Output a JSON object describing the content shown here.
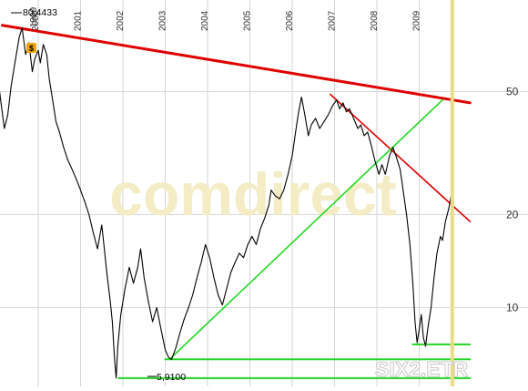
{
  "chart_data": {
    "type": "line",
    "scale": "log",
    "grid": true,
    "watermark": "comdirect",
    "symbol_label": "SIX2.ETR",
    "x_ticks": [
      "2000",
      "2001",
      "2002",
      "2003",
      "2004",
      "2005",
      "2006",
      "2007",
      "2008",
      "2009"
    ],
    "y_ticks": [
      {
        "value": 50,
        "label": "50"
      },
      {
        "value": 20,
        "label": "20"
      },
      {
        "value": 10,
        "label": "10"
      }
    ],
    "annotations": {
      "high_label": "80,4433",
      "high_value": 80.4433,
      "low_label": "5,9100",
      "low_value": 5.91,
      "dividend_marker": "$",
      "cut_off_year_label": "1999"
    },
    "colors": {
      "price": "#000000",
      "resistance": "#e00000",
      "support": "#22d622",
      "grid": "#d6d6d6",
      "current_marker": "#eadb86",
      "watermark": "#f3ecc5",
      "axis_text": "#333333"
    },
    "series": [
      {
        "points": [
          [
            1999.05,
            55
          ],
          [
            1999.12,
            46
          ],
          [
            1999.2,
            38
          ],
          [
            1999.28,
            42
          ],
          [
            1999.36,
            52
          ],
          [
            1999.45,
            62
          ],
          [
            1999.55,
            75
          ],
          [
            1999.62,
            80.4
          ],
          [
            1999.7,
            66
          ],
          [
            1999.78,
            72
          ],
          [
            1999.86,
            58
          ],
          [
            1999.92,
            64
          ],
          [
            2000.0,
            68
          ],
          [
            2000.05,
            62
          ],
          [
            2000.12,
            71
          ],
          [
            2000.2,
            66
          ],
          [
            2000.26,
            55
          ],
          [
            2000.33,
            48
          ],
          [
            2000.42,
            40
          ],
          [
            2000.5,
            37
          ],
          [
            2000.6,
            33
          ],
          [
            2000.7,
            30
          ],
          [
            2000.8,
            28
          ],
          [
            2000.9,
            26
          ],
          [
            2001.0,
            24
          ],
          [
            2001.1,
            22
          ],
          [
            2001.2,
            20
          ],
          [
            2001.3,
            17.5
          ],
          [
            2001.4,
            15.5
          ],
          [
            2001.5,
            18.5
          ],
          [
            2001.55,
            16
          ],
          [
            2001.62,
            13
          ],
          [
            2001.7,
            10.5
          ],
          [
            2001.75,
            9
          ],
          [
            2001.8,
            6.9
          ],
          [
            2001.84,
            5.91
          ],
          [
            2001.88,
            7.5
          ],
          [
            2001.95,
            9.5
          ],
          [
            2002.05,
            11.5
          ],
          [
            2002.15,
            13.5
          ],
          [
            2002.25,
            12
          ],
          [
            2002.35,
            13.5
          ],
          [
            2002.42,
            15.5
          ],
          [
            2002.5,
            12.5
          ],
          [
            2002.6,
            10.5
          ],
          [
            2002.7,
            9
          ],
          [
            2002.8,
            10
          ],
          [
            2002.9,
            8.5
          ],
          [
            2003.0,
            7.3
          ],
          [
            2003.08,
            6.9
          ],
          [
            2003.15,
            6.8
          ],
          [
            2003.25,
            7.4
          ],
          [
            2003.35,
            8.3
          ],
          [
            2003.45,
            9.2
          ],
          [
            2003.55,
            10
          ],
          [
            2003.65,
            11
          ],
          [
            2003.75,
            12.5
          ],
          [
            2003.85,
            14
          ],
          [
            2003.95,
            16
          ],
          [
            2004.05,
            14.5
          ],
          [
            2004.15,
            12.5
          ],
          [
            2004.25,
            11
          ],
          [
            2004.35,
            10.2
          ],
          [
            2004.45,
            11.5
          ],
          [
            2004.55,
            13
          ],
          [
            2004.65,
            14
          ],
          [
            2004.75,
            15
          ],
          [
            2004.85,
            14.5
          ],
          [
            2004.95,
            16
          ],
          [
            2005.05,
            17
          ],
          [
            2005.15,
            16
          ],
          [
            2005.25,
            18
          ],
          [
            2005.35,
            19.5
          ],
          [
            2005.45,
            21.5
          ],
          [
            2005.5,
            24
          ],
          [
            2005.6,
            23
          ],
          [
            2005.7,
            22.5
          ],
          [
            2005.8,
            24
          ],
          [
            2005.9,
            27
          ],
          [
            2006.0,
            31
          ],
          [
            2006.08,
            37
          ],
          [
            2006.15,
            43
          ],
          [
            2006.22,
            48
          ],
          [
            2006.3,
            42
          ],
          [
            2006.38,
            36
          ],
          [
            2006.45,
            39
          ],
          [
            2006.55,
            41
          ],
          [
            2006.65,
            38
          ],
          [
            2006.75,
            40
          ],
          [
            2006.85,
            42
          ],
          [
            2006.95,
            45
          ],
          [
            2007.05,
            47
          ],
          [
            2007.12,
            44
          ],
          [
            2007.2,
            46
          ],
          [
            2007.28,
            43
          ],
          [
            2007.35,
            44
          ],
          [
            2007.45,
            41
          ],
          [
            2007.55,
            38
          ],
          [
            2007.62,
            39
          ],
          [
            2007.7,
            36
          ],
          [
            2007.78,
            37
          ],
          [
            2007.88,
            33
          ],
          [
            2007.95,
            30
          ],
          [
            2008.05,
            27
          ],
          [
            2008.12,
            29
          ],
          [
            2008.2,
            27
          ],
          [
            2008.3,
            31
          ],
          [
            2008.38,
            33
          ],
          [
            2008.45,
            31
          ],
          [
            2008.55,
            28
          ],
          [
            2008.62,
            24
          ],
          [
            2008.7,
            20
          ],
          [
            2008.78,
            16
          ],
          [
            2008.85,
            12
          ],
          [
            2008.9,
            9
          ],
          [
            2008.95,
            7.7
          ],
          [
            2009.0,
            8.5
          ],
          [
            2009.05,
            9.5
          ],
          [
            2009.1,
            8
          ],
          [
            2009.15,
            7.5
          ],
          [
            2009.2,
            8.5
          ],
          [
            2009.28,
            10
          ],
          [
            2009.35,
            12.5
          ],
          [
            2009.42,
            15
          ],
          [
            2009.5,
            17
          ],
          [
            2009.55,
            16.5
          ],
          [
            2009.62,
            19
          ],
          [
            2009.7,
            21
          ],
          [
            2009.75,
            23
          ]
        ]
      }
    ],
    "trendlines": [
      {
        "color": "resistance",
        "points": [
          [
            1999.15,
            82
          ],
          [
            2010.2,
            46
          ]
        ]
      },
      {
        "color": "resistance",
        "points": [
          [
            2006.9,
            49
          ],
          [
            2010.2,
            19
          ]
        ]
      },
      {
        "color": "support",
        "points": [
          [
            2003.15,
            6.9
          ],
          [
            2009.55,
            47
          ]
        ]
      },
      {
        "color": "support",
        "points": [
          [
            2003.0,
            6.8
          ],
          [
            2010.2,
            6.8
          ]
        ]
      },
      {
        "color": "support",
        "points": [
          [
            2008.85,
            7.6
          ],
          [
            2010.2,
            7.6
          ]
        ]
      },
      {
        "color": "support",
        "points": [
          [
            2001.9,
            5.91
          ],
          [
            2010.2,
            5.91
          ]
        ]
      }
    ],
    "current_marker_x": 2009.78
  }
}
